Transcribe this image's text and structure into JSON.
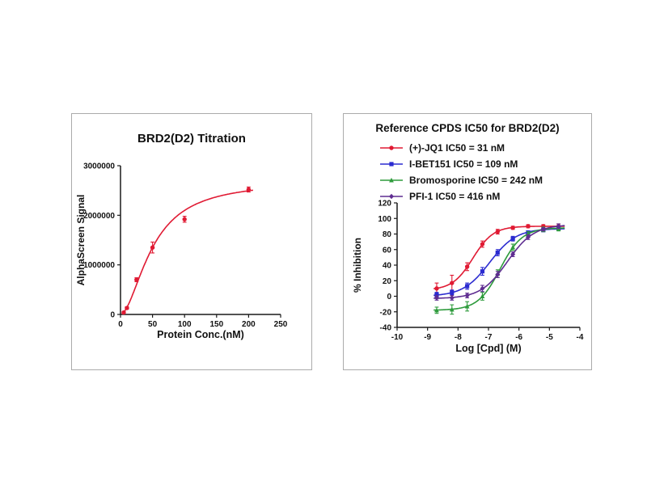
{
  "page": {
    "background": "#ffffff",
    "panel_border": "#ababab"
  },
  "chart_data": [
    {
      "type": "scatter",
      "title": "BRD2(D2) Titration",
      "xlabel": "Protein Conc.(nM)",
      "ylabel": "AlphaScreen Signal",
      "xlim": [
        0,
        250
      ],
      "ylim": [
        0,
        3000000
      ],
      "xticks": [
        0,
        50,
        100,
        150,
        200,
        250
      ],
      "yticks": [
        0,
        1000000,
        2000000,
        3000000
      ],
      "grid": false,
      "legend_position": "none",
      "series": [
        {
          "name": "BRD2(D2) titration",
          "color": "#e01a33",
          "marker": "circle",
          "x": [
            5,
            10,
            25,
            50,
            100,
            200
          ],
          "y": [
            40000,
            130000,
            700000,
            1350000,
            1920000,
            2520000
          ],
          "yerr": [
            15000,
            25000,
            40000,
            110000,
            60000,
            50000
          ],
          "fit": {
            "kind": "hill",
            "vmax": 2700000,
            "k": 50,
            "h": 1.8,
            "xmin": 2,
            "xmax": 207
          }
        }
      ]
    },
    {
      "type": "scatter",
      "title": "Reference CPDS IC50 for BRD2(D2)",
      "xlabel": "Log [Cpd] (M)",
      "ylabel": "% Inhibition",
      "xlim": [
        -10,
        -4
      ],
      "ylim": [
        -40,
        120
      ],
      "xticks": [
        -10,
        -9,
        -8,
        -7,
        -6,
        -5,
        -4
      ],
      "yticks": [
        -40,
        -20,
        0,
        20,
        40,
        60,
        80,
        100,
        120
      ],
      "grid": false,
      "legend_position": "top",
      "series": [
        {
          "name": "(+)-JQ1 IC50 = 31 nM",
          "ic50": "31 nM",
          "color": "#e01a33",
          "marker": "circle",
          "x": [
            -8.7,
            -8.2,
            -7.7,
            -7.2,
            -6.7,
            -6.2,
            -5.7,
            -5.2,
            -4.7
          ],
          "y": [
            10,
            17,
            38,
            67,
            83,
            88,
            90,
            90,
            90
          ],
          "yerr": [
            7,
            10,
            5,
            4,
            3,
            2,
            2,
            2,
            3
          ],
          "fit": {
            "kind": "logistic",
            "bottom": 8,
            "top": 90,
            "logIC50": -7.51,
            "hill": 1.3,
            "xmin": -8.8,
            "xmax": -4.5
          }
        },
        {
          "name": "I-BET151 IC50 = 109 nM",
          "ic50": "109 nM",
          "color": "#2b2bd0",
          "marker": "square",
          "x": [
            -8.7,
            -8.2,
            -7.7,
            -7.2,
            -6.7,
            -6.2,
            -5.7,
            -5.2,
            -4.7
          ],
          "y": [
            2,
            5,
            13,
            32,
            56,
            74,
            82,
            85,
            87
          ],
          "yerr": [
            3,
            3,
            4,
            5,
            4,
            3,
            2,
            2,
            2
          ],
          "fit": {
            "kind": "logistic",
            "bottom": 0,
            "top": 87,
            "logIC50": -6.96,
            "hill": 1.0,
            "xmin": -8.8,
            "xmax": -4.5
          }
        },
        {
          "name": "Bromosporine IC50 = 242 nM",
          "ic50": "242 nM",
          "color": "#2e9b3c",
          "marker": "triangle",
          "x": [
            -8.7,
            -8.2,
            -7.7,
            -7.2,
            -6.7,
            -6.2,
            -5.7,
            -5.2,
            -4.7
          ],
          "y": [
            -18,
            -17,
            -13,
            0,
            29,
            63,
            80,
            86,
            87
          ],
          "yerr": [
            4,
            6,
            6,
            5,
            5,
            4,
            3,
            3,
            3
          ],
          "fit": {
            "kind": "logistic",
            "bottom": -18,
            "top": 88,
            "logIC50": -6.62,
            "hill": 1.2,
            "xmin": -8.8,
            "xmax": -4.5
          }
        },
        {
          "name": "PFI-1 IC50 = 416 nM",
          "ic50": "416 nM",
          "color": "#5f2d91",
          "marker": "diamond",
          "x": [
            -8.7,
            -8.2,
            -7.7,
            -7.2,
            -6.7,
            -6.2,
            -5.7,
            -5.2,
            -4.7
          ],
          "y": [
            -2,
            -2,
            1,
            10,
            28,
            54,
            76,
            86,
            90
          ],
          "yerr": [
            3,
            3,
            3,
            4,
            4,
            3,
            3,
            2,
            3
          ],
          "fit": {
            "kind": "logistic",
            "bottom": -3,
            "top": 92,
            "logIC50": -6.38,
            "hill": 1.0,
            "xmin": -8.8,
            "xmax": -4.5
          }
        }
      ]
    }
  ]
}
